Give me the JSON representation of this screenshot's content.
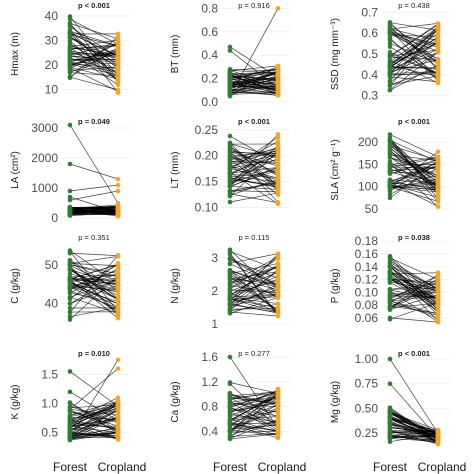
{
  "chart_data": {
    "type": "paired-dot-grid",
    "categories": [
      "Forest",
      "Cropland"
    ],
    "colors": {
      "Forest": "#2e7d32",
      "Cropland": "#f5a623",
      "lines": "#000000"
    },
    "panels": [
      {
        "id": "hmax",
        "ylabel": "Hmax (m)",
        "ylim": [
          5,
          44
        ],
        "ticks": [
          10,
          20,
          30,
          40
        ],
        "tick_labels": [
          "10",
          "20",
          "30",
          "40"
        ],
        "p_label": "p < 0.001",
        "p_bold": true,
        "forest_range": [
          11,
          44
        ],
        "cropland_range": [
          6,
          36
        ],
        "n": 55,
        "seed": 11
      },
      {
        "id": "bt",
        "ylabel": "BT (mm)",
        "ylim": [
          0,
          0.82
        ],
        "ticks": [
          0.0,
          0.2,
          0.4,
          0.6,
          0.8
        ],
        "tick_labels": [
          "0.0",
          "0.2",
          "0.4",
          "0.6",
          "0.8"
        ],
        "p_label": "p = 0.916",
        "p_bold": false,
        "forest_range": [
          0.02,
          0.34
        ],
        "cropland_range": [
          0.01,
          0.34
        ],
        "n": 55,
        "seed": 22,
        "extra_pairs": [
          [
            0.47,
            0.21
          ],
          [
            0.05,
            0.8
          ],
          [
            0.44,
            0.12
          ]
        ]
      },
      {
        "id": "ssd",
        "ylabel": "SSD (mg mm⁻³)",
        "ylim": [
          0.27,
          0.73
        ],
        "ticks": [
          0.3,
          0.4,
          0.5,
          0.6,
          0.7
        ],
        "tick_labels": [
          "0.3",
          "0.4",
          "0.5",
          "0.6",
          "0.7"
        ],
        "p_label": "p = 0.438",
        "p_bold": false,
        "forest_range": [
          0.28,
          0.73
        ],
        "cropland_range": [
          0.3,
          0.72
        ],
        "n": 55,
        "seed": 33
      },
      {
        "id": "la",
        "ylabel": "LA (cm²)",
        "ylim": [
          0,
          3200
        ],
        "ticks": [
          0,
          1000,
          2000,
          3000
        ],
        "tick_labels": [
          "0",
          "1000",
          "2000",
          "3000"
        ],
        "p_label": "p = 0.049",
        "p_bold": true,
        "forest_range": [
          5,
          450
        ],
        "cropland_range": [
          5,
          480
        ],
        "n": 55,
        "seed": 44,
        "extra_pairs": [
          [
            3100,
            500
          ],
          [
            1800,
            1300
          ],
          [
            900,
            1100
          ],
          [
            700,
            200
          ],
          [
            600,
            900
          ]
        ]
      },
      {
        "id": "lt",
        "ylabel": "LT (mm)",
        "ylim": [
          0.08,
          0.265
        ],
        "ticks": [
          0.1,
          0.15,
          0.2,
          0.25
        ],
        "tick_labels": [
          "0.10",
          "0.15",
          "0.20",
          "0.25"
        ],
        "p_label": "p < 0.001",
        "p_bold": true,
        "forest_range": [
          0.09,
          0.26
        ],
        "cropland_range": [
          0.09,
          0.26
        ],
        "n": 55,
        "seed": 55
      },
      {
        "id": "sla",
        "ylabel": "SLA (cm² g⁻¹)",
        "ylim": [
          30,
          245
        ],
        "ticks": [
          50,
          100,
          150,
          200
        ],
        "tick_labels": [
          "50",
          "100",
          "150",
          "200"
        ],
        "p_label": "p < 0.001",
        "p_bold": true,
        "forest_range": [
          55,
          240
        ],
        "cropland_range": [
          40,
          200
        ],
        "n": 55,
        "seed": 66
      },
      {
        "id": "c",
        "ylabel": "C (g/kg)",
        "ylim": [
          32,
          57
        ],
        "ticks": [
          40,
          50
        ],
        "tick_labels": [
          "40",
          "50"
        ],
        "p_label": "p = 0.351",
        "p_bold": false,
        "forest_range": [
          33,
          56
        ],
        "cropland_range": [
          33,
          55
        ],
        "n": 55,
        "seed": 77
      },
      {
        "id": "n",
        "ylabel": "N (g/kg)",
        "ylim": [
          0.7,
          3.6
        ],
        "ticks": [
          1,
          2,
          3
        ],
        "tick_labels": [
          "1",
          "2",
          "3"
        ],
        "p_label": "p = 0.115",
        "p_bold": false,
        "forest_range": [
          1.0,
          3.5
        ],
        "cropland_range": [
          0.8,
          3.4
        ],
        "n": 55,
        "seed": 88
      },
      {
        "id": "p",
        "ylabel": "P (g/kg)",
        "ylim": [
          0.035,
          0.185
        ],
        "ticks": [
          0.06,
          0.08,
          0.1,
          0.12,
          0.14,
          0.16,
          0.18
        ],
        "tick_labels": [
          "0.06",
          "0.08",
          "0.10",
          "0.12",
          "0.14",
          "0.16",
          "0.18"
        ],
        "p_label": "p = 0.038",
        "p_bold": true,
        "forest_range": [
          0.045,
          0.18
        ],
        "cropland_range": [
          0.04,
          0.14
        ],
        "n": 55,
        "seed": 99
      },
      {
        "id": "k",
        "ylabel": "K (g/kg)",
        "ylim": [
          0.2,
          1.85
        ],
        "ticks": [
          0.5,
          1.0,
          1.5
        ],
        "tick_labels": [
          "0.5",
          "1.0",
          "1.5"
        ],
        "p_label": "p = 0.010",
        "p_bold": true,
        "forest_range": [
          0.25,
          1.1
        ],
        "cropland_range": [
          0.25,
          1.2
        ],
        "n": 55,
        "seed": 111,
        "extra_pairs": [
          [
            1.55,
            0.95
          ],
          [
            0.4,
            1.75
          ],
          [
            0.9,
            1.6
          ],
          [
            1.2,
            0.7
          ]
        ]
      },
      {
        "id": "ca",
        "ylabel": "Ca (g/kg)",
        "ylim": [
          0.1,
          1.65
        ],
        "ticks": [
          0.4,
          0.8,
          1.2,
          1.6
        ],
        "tick_labels": [
          "0.4",
          "0.8",
          "1.2",
          "1.6"
        ],
        "p_label": "p = 0.277",
        "p_bold": false,
        "forest_range": [
          0.15,
          1.3
        ],
        "cropland_range": [
          0.15,
          1.25
        ],
        "n": 55,
        "seed": 122,
        "extra_pairs": [
          [
            1.6,
            0.45
          ]
        ]
      },
      {
        "id": "mg",
        "ylabel": "Mg (g/kg)",
        "ylim": [
          0.08,
          1.05
        ],
        "ticks": [
          0.25,
          0.5,
          0.75,
          1.0
        ],
        "tick_labels": [
          "0.25",
          "0.50",
          "0.75",
          "1.00"
        ],
        "p_label": "p < 0.001",
        "p_bold": true,
        "forest_range": [
          0.12,
          0.55
        ],
        "cropland_range": [
          0.12,
          0.32
        ],
        "n": 55,
        "seed": 133,
        "extra_pairs": [
          [
            1.0,
            0.25
          ],
          [
            0.75,
            0.2
          ]
        ]
      }
    ]
  }
}
